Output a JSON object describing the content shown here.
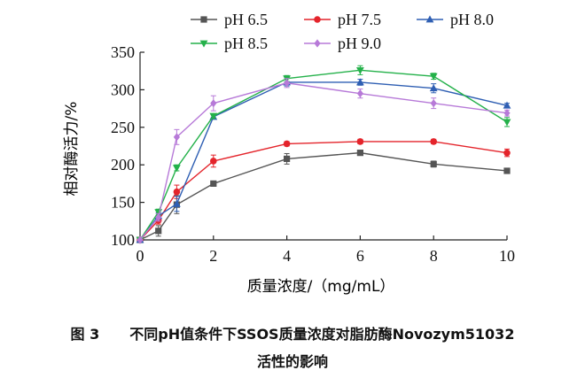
{
  "figure_caption": {
    "number": "图 3",
    "line1": "不同pH值条件下SSOS质量浓度对脂肪酶Novozym51032",
    "line2": "活性的影响"
  },
  "colors": {
    "pH 6.5": "#555555",
    "pH 7.5": "#e4242b",
    "pH 8.0": "#2f5fb3",
    "pH 8.5": "#24b14a",
    "pH 9.0": "#b77ad8",
    "axis": "#222222"
  },
  "chart_data": {
    "type": "line",
    "xlabel": "质量浓度/（mg/mL）",
    "ylabel": "相对酶活力/%",
    "xlim": [
      0,
      10
    ],
    "ylim": [
      100,
      350
    ],
    "xticks": [
      0,
      2,
      4,
      6,
      8,
      10
    ],
    "yticks": [
      100,
      150,
      200,
      250,
      300,
      350
    ],
    "legend_position": "top",
    "grid": false,
    "x": [
      0,
      0.5,
      1,
      2,
      4,
      6,
      8,
      10
    ],
    "series": [
      {
        "name": "pH 6.5",
        "marker": "square",
        "values": [
          100,
          112,
          147,
          175,
          208,
          216,
          201,
          192
        ],
        "error": [
          0,
          7,
          12,
          3,
          7,
          3,
          4,
          3
        ]
      },
      {
        "name": "pH 7.5",
        "marker": "circle",
        "values": [
          100,
          126,
          164,
          205,
          228,
          231,
          231,
          216
        ],
        "error": [
          0,
          5,
          9,
          8,
          3,
          3,
          3,
          5
        ]
      },
      {
        "name": "pH 8.0",
        "marker": "triangle-up",
        "values": [
          100,
          132,
          148,
          264,
          310,
          310,
          302,
          279
        ],
        "error": [
          0,
          4,
          10,
          3,
          5,
          4,
          6,
          3
        ]
      },
      {
        "name": "pH 8.5",
        "marker": "triangle-down",
        "values": [
          100,
          137,
          196,
          265,
          315,
          326,
          318,
          257
        ],
        "error": [
          0,
          4,
          4,
          3,
          4,
          6,
          4,
          6
        ]
      },
      {
        "name": "pH 9.0",
        "marker": "diamond",
        "values": [
          100,
          130,
          237,
          282,
          309,
          295,
          282,
          269
        ],
        "error": [
          0,
          5,
          10,
          10,
          6,
          6,
          7,
          4
        ]
      }
    ]
  }
}
